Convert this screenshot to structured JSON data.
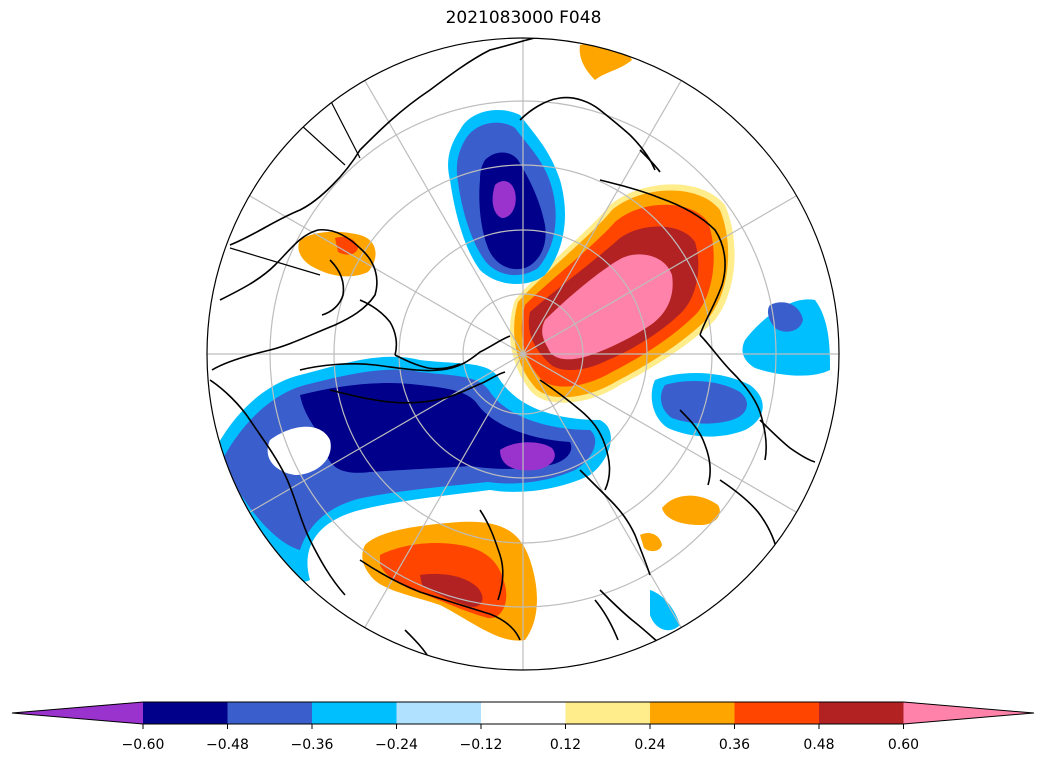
{
  "title": "2021083000 F048",
  "colorbar": {
    "ticks": [
      "−0.60",
      "−0.48",
      "−0.36",
      "−0.24",
      "−0.12",
      "0.12",
      "0.24",
      "0.36",
      "0.48",
      "0.60"
    ],
    "levels": [
      -0.6,
      -0.48,
      -0.36,
      -0.24,
      -0.12,
      0.12,
      0.24,
      0.36,
      0.48,
      0.6
    ],
    "colors": [
      "#9a32cd",
      "#00008b",
      "#3a5fcd",
      "#00bfff",
      "#b0e2ff",
      "#ffffff",
      "#ffec8b",
      "#ffa500",
      "#ff4500",
      "#b22222",
      "#ff82ab"
    ],
    "extend": "both"
  },
  "map": {
    "projection": "north-polar-stereographic",
    "graticule": true,
    "coastlines": true,
    "fill_colors": {
      "neg_060": "#9a32cd",
      "neg_048": "#00008b",
      "neg_036": "#3a5fcd",
      "neg_024": "#00bfff",
      "neg_012": "#b0e2ff",
      "pos_012": "#ffec8b",
      "pos_024": "#ffa500",
      "pos_036": "#ff4500",
      "pos_048": "#b22222",
      "pos_060": "#ff82ab"
    }
  }
}
